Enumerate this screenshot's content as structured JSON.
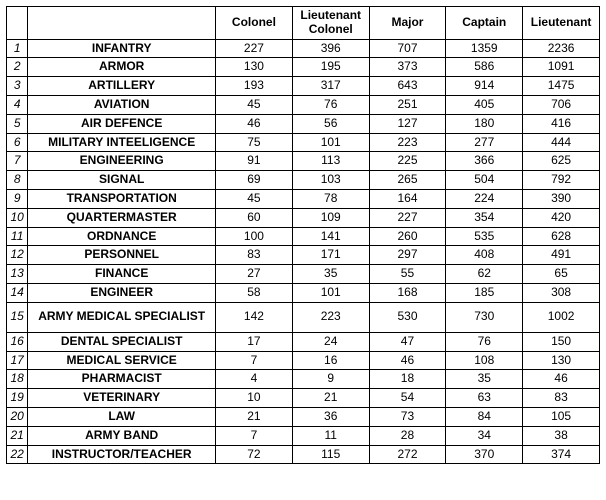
{
  "columns": [
    "Colonel",
    "Lieutenant Colonel",
    "Major",
    "Captain",
    "Lieutenant"
  ],
  "rows": [
    {
      "n": "1",
      "branch": "INFANTRY",
      "v": [
        227,
        396,
        707,
        1359,
        2236
      ]
    },
    {
      "n": "2",
      "branch": "ARMOR",
      "v": [
        130,
        195,
        373,
        586,
        1091
      ]
    },
    {
      "n": "3",
      "branch": "ARTILLERY",
      "v": [
        193,
        317,
        643,
        914,
        1475
      ]
    },
    {
      "n": "4",
      "branch": "AVIATION",
      "v": [
        45,
        76,
        251,
        405,
        706
      ]
    },
    {
      "n": "5",
      "branch": "AIR DEFENCE",
      "v": [
        46,
        56,
        127,
        180,
        416
      ]
    },
    {
      "n": "6",
      "branch": "MILITARY INTEELIGENCE",
      "v": [
        75,
        101,
        223,
        277,
        444
      ]
    },
    {
      "n": "7",
      "branch": "ENGINEERING",
      "v": [
        91,
        113,
        225,
        366,
        625
      ]
    },
    {
      "n": "8",
      "branch": "SIGNAL",
      "v": [
        69,
        103,
        265,
        504,
        792
      ]
    },
    {
      "n": "9",
      "branch": "TRANSPORTATION",
      "v": [
        45,
        78,
        164,
        224,
        390
      ]
    },
    {
      "n": "10",
      "branch": "QUARTERMASTER",
      "v": [
        60,
        109,
        227,
        354,
        420
      ]
    },
    {
      "n": "11",
      "branch": "ORDNANCE",
      "v": [
        100,
        141,
        260,
        535,
        628
      ]
    },
    {
      "n": "12",
      "branch": "PERSONNEL",
      "v": [
        83,
        171,
        297,
        408,
        491
      ]
    },
    {
      "n": "13",
      "branch": "FINANCE",
      "v": [
        27,
        35,
        55,
        62,
        65
      ]
    },
    {
      "n": "14",
      "branch": "ENGINEER",
      "v": [
        58,
        101,
        168,
        185,
        308
      ]
    },
    {
      "n": "15",
      "branch": "ARMY MEDICAL SPECIALIST",
      "v": [
        142,
        223,
        530,
        730,
        1002
      ],
      "tall": true
    },
    {
      "n": "16",
      "branch": "DENTAL SPECIALIST",
      "v": [
        17,
        24,
        47,
        76,
        150
      ]
    },
    {
      "n": "17",
      "branch": "MEDICAL SERVICE",
      "v": [
        7,
        16,
        46,
        108,
        130
      ]
    },
    {
      "n": "18",
      "branch": "PHARMACIST",
      "v": [
        4,
        9,
        18,
        35,
        46
      ]
    },
    {
      "n": "19",
      "branch": "VETERINARY",
      "v": [
        10,
        21,
        54,
        63,
        83
      ]
    },
    {
      "n": "20",
      "branch": "LAW",
      "v": [
        21,
        36,
        73,
        84,
        105
      ]
    },
    {
      "n": "21",
      "branch": "ARMY BAND",
      "v": [
        7,
        11,
        28,
        34,
        38
      ]
    },
    {
      "n": "22",
      "branch": "INSTRUCTOR/TEACHER",
      "v": [
        72,
        115,
        272,
        370,
        374
      ]
    }
  ]
}
